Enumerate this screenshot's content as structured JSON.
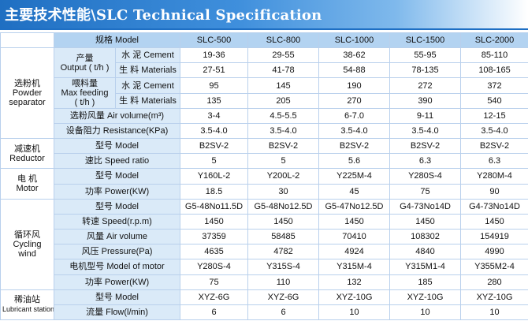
{
  "title": "主要技术性能\\SLC Technical Specification",
  "header": {
    "label": "规格  Model",
    "models": [
      "SLC-500",
      "SLC-800",
      "SLC-1000",
      "SLC-1500",
      "SLC-2000"
    ]
  },
  "groups": {
    "powder_separator": {
      "cn": "选粉机",
      "en1": "Powder",
      "en2": "separator",
      "output_label_cn": "产量",
      "output_label_en": "Output ( t/h )",
      "cement_label": "水 泥  Cement",
      "materials_label": "生 料  Materials",
      "output_cement": [
        "19-36",
        "29-55",
        "38-62",
        "55-95",
        "85-110"
      ],
      "output_materials": [
        "27-51",
        "41-78",
        "54-88",
        "78-135",
        "108-165"
      ],
      "feed_label_cn": "喂料量",
      "feed_label_en1": "Max feeding",
      "feed_label_en2": "( t/h )",
      "feed_cement": [
        "95",
        "145",
        "190",
        "272",
        "372"
      ],
      "feed_materials": [
        "135",
        "205",
        "270",
        "390",
        "540"
      ],
      "air_label": "选粉风量  Air volume(m³)",
      "air_values": [
        "3-4",
        "4.5-5.5",
        "6-7.0",
        "9-11",
        "12-15"
      ],
      "resistance_label": "设备阻力 Resistance(KPa)",
      "resistance_values": [
        "3.5-4.0",
        "3.5-4.0",
        "3.5-4.0",
        "3.5-4.0",
        "3.5-4.0"
      ]
    },
    "reductor": {
      "cn": "减速机",
      "en": "Reductor",
      "model_label": "型号  Model",
      "model_values": [
        "B2SV-2",
        "B2SV-2",
        "B2SV-2",
        "B2SV-2",
        "B2SV-2"
      ],
      "ratio_label": "速比  Speed ratio",
      "ratio_values": [
        "5",
        "5",
        "5.6",
        "6.3",
        "6.3"
      ]
    },
    "motor": {
      "cn": "电  机",
      "en": "Motor",
      "model_label": "型号  Model",
      "model_values": [
        "Y160L-2",
        "Y200L-2",
        "Y225M-4",
        "Y280S-4",
        "Y280M-4"
      ],
      "power_label": "功率  Power(KW)",
      "power_values": [
        "18.5",
        "30",
        "45",
        "75",
        "90"
      ]
    },
    "cycling_wind": {
      "cn": "循环风",
      "en1": "Cycling",
      "en2": "wind",
      "model_label": "型号  Model",
      "model_values": [
        "G5-48No11.5D",
        "G5-48No12.5D",
        "G5-47No12.5D",
        "G4-73No14D",
        "G4-73No14D"
      ],
      "speed_label": "转速  Speed(r.p.m)",
      "speed_values": [
        "1450",
        "1450",
        "1450",
        "1450",
        "1450"
      ],
      "air_label": "风量  Air volume",
      "air_values": [
        "37359",
        "58485",
        "70410",
        "108302",
        "154919"
      ],
      "pressure_label": "风压  Pressure(Pa)",
      "pressure_values": [
        "4635",
        "4782",
        "4924",
        "4840",
        "4990"
      ],
      "motor_label": "电机型号  Model of motor",
      "motor_values": [
        "Y280S-4",
        "Y315S-4",
        "Y315M-4",
        "Y315M1-4",
        "Y355M2-4"
      ],
      "power_label": "功率  Power(KW)",
      "power_values": [
        "75",
        "110",
        "132",
        "185",
        "280"
      ]
    },
    "lubricant_station": {
      "cn": "稀油站",
      "en": "Lubricant station",
      "model_label": "型号  Model",
      "model_values": [
        "XYZ-6G",
        "XYZ-6G",
        "XYZ-10G",
        "XYZ-10G",
        "XYZ-10G"
      ],
      "flow_label": "流量  Flow(l/min)",
      "flow_values": [
        "6",
        "6",
        "10",
        "10",
        "10"
      ]
    }
  }
}
